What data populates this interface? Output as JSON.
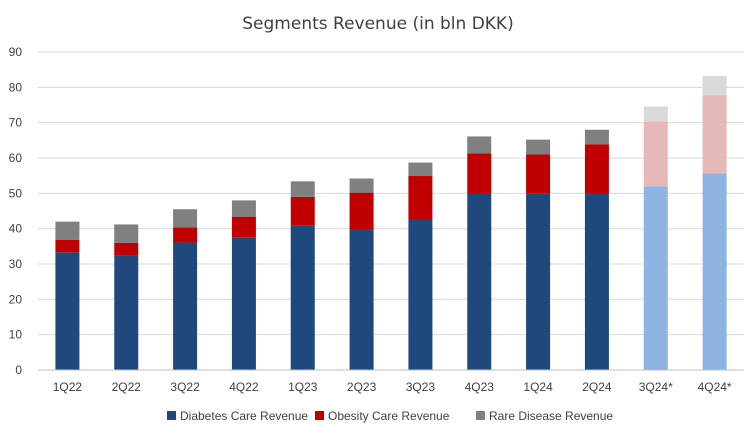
{
  "chart_data": {
    "type": "bar",
    "stacked": true,
    "title": "Segments Revenue (in bln DKK)",
    "xlabel": "",
    "ylabel": "",
    "ylim": [
      0,
      90
    ],
    "yticks": [
      0,
      10,
      20,
      30,
      40,
      50,
      60,
      70,
      80,
      90
    ],
    "grid": true,
    "legend_position": "bottom",
    "categories": [
      "1Q22",
      "2Q22",
      "3Q22",
      "4Q22",
      "1Q23",
      "2Q23",
      "3Q23",
      "4Q23",
      "1Q24",
      "2Q24",
      "3Q24*",
      "4Q24*"
    ],
    "projected_categories": [
      "3Q24*",
      "4Q24*"
    ],
    "series": [
      {
        "name": "Diabetes Care Revenue",
        "color": "#1F497D",
        "projected_color": "#8DB4E2",
        "values": [
          33.3,
          32.3,
          36.1,
          37.6,
          41.0,
          39.9,
          42.6,
          50.1,
          49.9,
          50.1,
          52.0,
          55.6
        ]
      },
      {
        "name": "Obesity Care Revenue",
        "color": "#C00000",
        "projected_color": "#E6B8B7",
        "values": [
          3.5,
          3.7,
          4.3,
          5.8,
          8.0,
          10.3,
          12.3,
          11.2,
          11.1,
          13.8,
          18.4,
          22.2
        ]
      },
      {
        "name": "Rare Disease Revenue",
        "color": "#808080",
        "projected_color": "#D9D9D9",
        "values": [
          5.2,
          5.2,
          5.1,
          4.6,
          4.4,
          4.0,
          3.8,
          4.8,
          4.2,
          4.1,
          4.2,
          5.4
        ]
      }
    ]
  }
}
